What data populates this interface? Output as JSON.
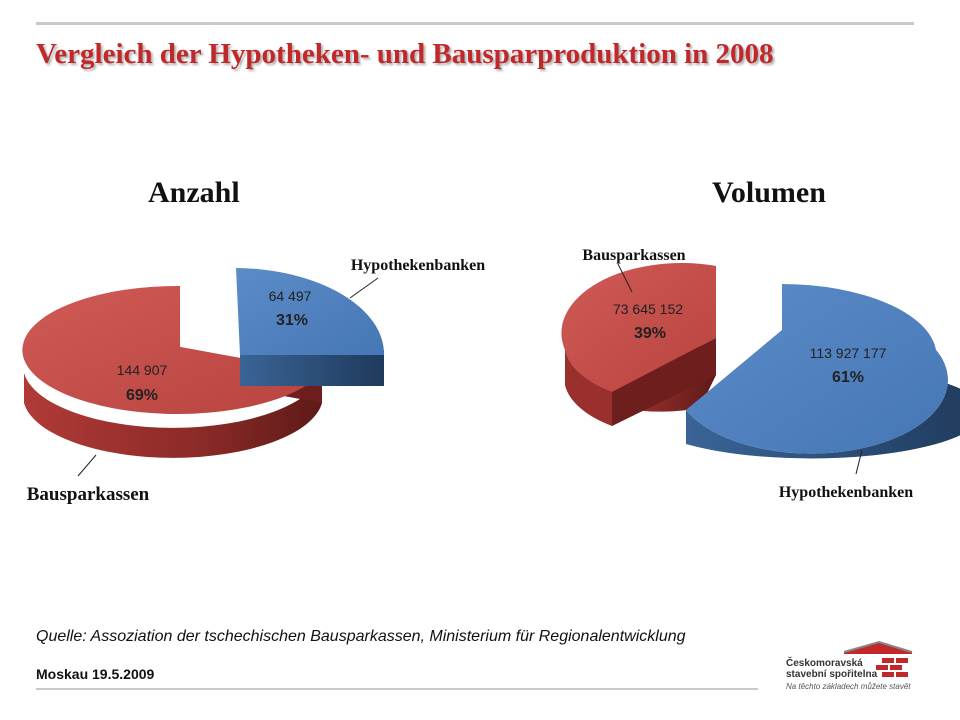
{
  "header": {
    "title": "Vergleich der Hypotheken- und Bausparproduktion in 2008"
  },
  "chart_data": [
    {
      "type": "pie",
      "title": "Anzahl",
      "slices": [
        {
          "name": "Hypothekenbanken",
          "value": 64497,
          "value_label": "64 497",
          "percent": 31,
          "percent_label": "31%",
          "color": "#4f81bd"
        },
        {
          "name": "Bausparkassen",
          "value": 144907,
          "value_label": "144 907",
          "percent": 69,
          "percent_label": "69%",
          "color": "#c0504d"
        }
      ]
    },
    {
      "type": "pie",
      "title": "Volumen",
      "slices": [
        {
          "name": "Bausparkassen",
          "value": 73645152,
          "value_label": "73 645 152",
          "percent": 39,
          "percent_label": "39%",
          "color": "#c0504d"
        },
        {
          "name": "Hypothekenbanken",
          "value": 113927177,
          "value_label": "113 927 177",
          "percent": 61,
          "percent_label": "61%",
          "color": "#4f81bd"
        }
      ]
    }
  ],
  "footer": {
    "source": "Quelle: Assoziation der tschechischen Bausparkassen, Ministerium  für Regionalentwicklung",
    "date": "Moskau  19.5.2009"
  },
  "logo": {
    "line1": "Českomoravská",
    "line2": "stavební spořitelna",
    "tagline": "Na těchto základech můžete stavět",
    "color": "#c0282a"
  }
}
